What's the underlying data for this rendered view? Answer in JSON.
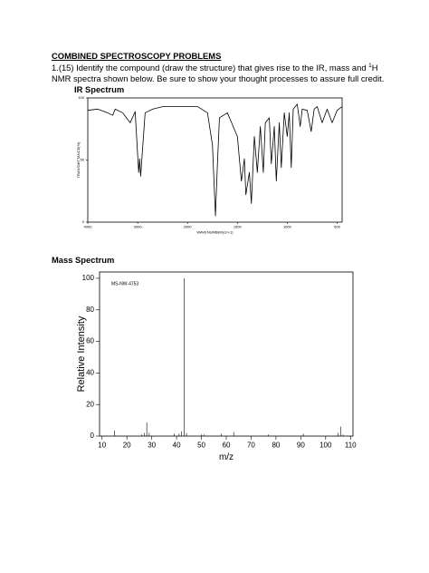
{
  "header": {
    "title": "COMBINED SPECTROSCOPY PROBLEMS"
  },
  "problem": {
    "text_before": "1.(15)  Identify the compound (draw the structure) that gives rise to the IR, mass and ",
    "superscript": "1",
    "text_after": "H NMR spectra shown below.  Be sure to show your thought processes to assure full credit."
  },
  "sections": [
    "IR Spectrum",
    "Mass Spectrum"
  ],
  "chart_data": [
    {
      "type": "line",
      "color": "#000000",
      "x_label": "WAVENUMBER(cm-1)",
      "y_label": "TRANSMITTANCE(%)",
      "xlim": [
        4000,
        450
      ],
      "x_scale_break": 2000,
      "xticks": [
        4000,
        3000,
        2000,
        1500,
        1000,
        500
      ],
      "ylim": [
        0,
        100
      ],
      "yticks": [
        0,
        50,
        100
      ],
      "x": [
        4000,
        3800,
        3600,
        3500,
        3450,
        3300,
        3150,
        3050,
        2980,
        2960,
        2940,
        2850,
        2700,
        2500,
        2200,
        2000,
        1900,
        1800,
        1750,
        1720,
        1700,
        1680,
        1600,
        1500,
        1460,
        1430,
        1415,
        1380,
        1360,
        1330,
        1300,
        1270,
        1240,
        1220,
        1180,
        1160,
        1130,
        1110,
        1080,
        1060,
        1030,
        1000,
        980,
        960,
        940,
        900,
        870,
        850,
        800,
        760,
        730,
        700,
        650,
        600,
        550,
        500,
        450
      ],
      "values": [
        90,
        91,
        88,
        86,
        91,
        88,
        80,
        89,
        40,
        51,
        37,
        88,
        91,
        93,
        93,
        93,
        93,
        88,
        62,
        5,
        47,
        84,
        88,
        69,
        33,
        51,
        22,
        40,
        15,
        69,
        40,
        77,
        40,
        80,
        84,
        47,
        77,
        33,
        80,
        44,
        88,
        69,
        88,
        44,
        91,
        95,
        77,
        91,
        90,
        73,
        91,
        93,
        80,
        91,
        80,
        90,
        93
      ]
    },
    {
      "type": "bar",
      "color": "#000000",
      "annotation": "MS-NW-4753",
      "x_label": "m/z",
      "y_label": "Relative Intensity",
      "xlim": [
        9,
        111
      ],
      "xticks": [
        10,
        20,
        30,
        40,
        50,
        60,
        70,
        80,
        90,
        100,
        110
      ],
      "ylim": [
        0,
        104
      ],
      "yticks": [
        0,
        20,
        40,
        60,
        80,
        100
      ],
      "x": [
        15,
        26,
        27,
        28,
        29,
        39,
        41,
        42,
        43,
        44,
        50,
        51,
        58,
        63,
        77,
        91,
        105,
        106,
        107
      ],
      "values": [
        3.5,
        1,
        2,
        8.7,
        2,
        1.5,
        1.5,
        3,
        100,
        2,
        1,
        1,
        1.5,
        2.5,
        1,
        1.5,
        2,
        6,
        1
      ]
    }
  ]
}
